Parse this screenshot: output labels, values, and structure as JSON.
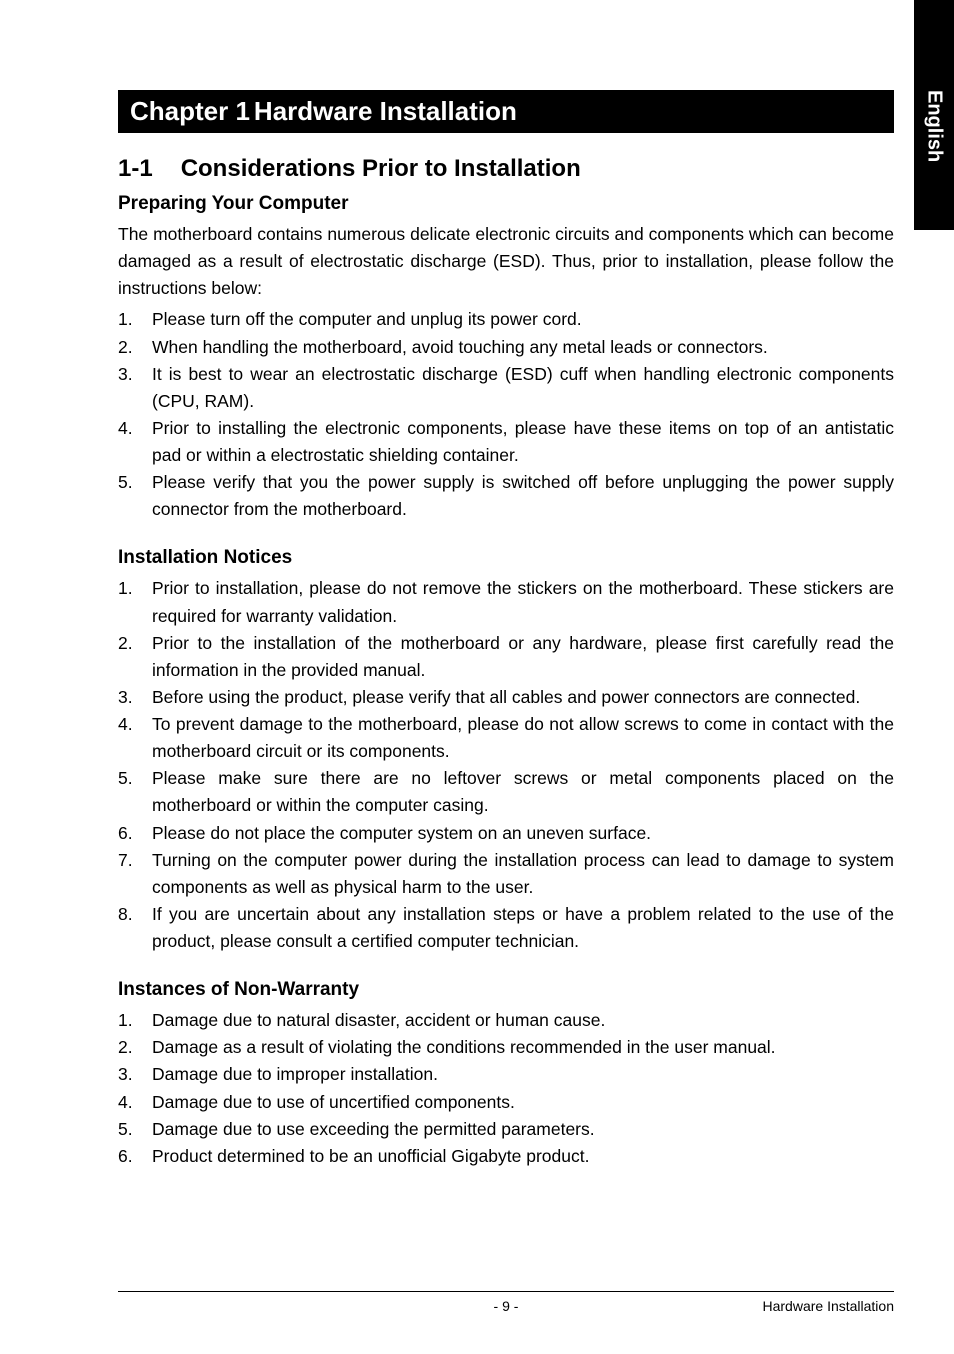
{
  "side_tab": "English",
  "chapter": {
    "prefix": "Chapter 1",
    "title": "Hardware Installation"
  },
  "section": {
    "number": "1-1",
    "title": "Considerations Prior to Installation"
  },
  "preparing": {
    "heading": "Preparing Your Computer",
    "intro": "The motherboard contains numerous delicate electronic circuits and components which can become damaged as a result of electrostatic discharge (ESD).  Thus, prior to installation, please follow the instructions below:",
    "items": [
      "Please turn off the computer and unplug its power cord.",
      "When handling the motherboard, avoid touching any metal leads or connectors.",
      "It is best to wear an electrostatic discharge (ESD) cuff when handling electronic components (CPU, RAM).",
      "Prior to installing the electronic components, please have these items on top of an antistatic pad or within a electrostatic shielding container.",
      "Please verify that you the power supply is switched off before unplugging the power supply connector from the motherboard."
    ]
  },
  "notices": {
    "heading": "Installation Notices",
    "items": [
      "Prior to installation, please do not remove the stickers on the motherboard.  These stickers are required for warranty validation.",
      "Prior to the installation of the motherboard or any hardware, please first carefully read the information in the provided manual.",
      "Before using the product, please verify that all cables and power connectors are connected.",
      "To prevent damage to the motherboard, please do not allow screws to come in contact with the motherboard circuit or its components.",
      "Please make sure there are no leftover screws or metal components placed on the motherboard or within the computer casing.",
      "Please do not place the computer system on an uneven surface.",
      "Turning on the computer power during the installation process can lead to damage to system components as well as physical harm to the user.",
      "If you are uncertain about any installation steps or have a problem related to the use of the product, please consult a certified computer technician."
    ]
  },
  "nonwarranty": {
    "heading": "Instances of Non-Warranty",
    "items": [
      "Damage due to natural disaster, accident or human cause.",
      "Damage as a result of violating the conditions recommended in the user manual.",
      "Damage due to improper installation.",
      "Damage due to use of uncertified components.",
      "Damage due to use exceeding the permitted parameters.",
      "Product determined to be an unofficial Gigabyte product."
    ]
  },
  "footer": {
    "page": "- 9 -",
    "label": "Hardware Installation"
  }
}
